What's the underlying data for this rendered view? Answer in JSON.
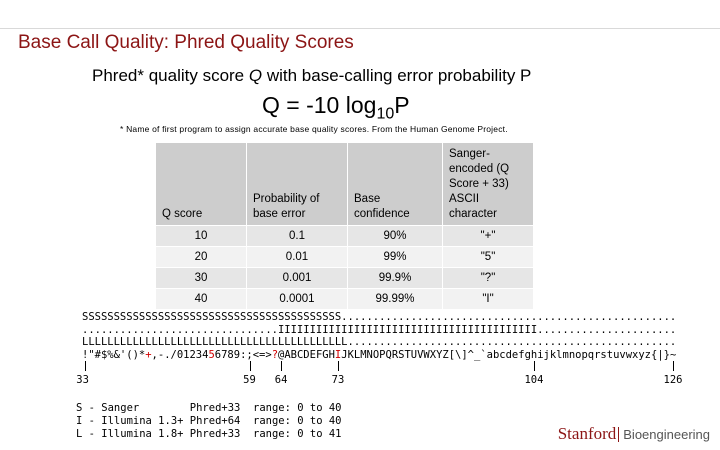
{
  "title": "Base Call Quality: Phred Quality Scores",
  "subtitle": {
    "before": "Phred* quality score ",
    "italic": "Q",
    "after": " with base-calling error probability P"
  },
  "formula": {
    "main": "Q = -10 log",
    "subscript": "10",
    "end": "P"
  },
  "footnote": "* Name of first program to assign accurate base quality scores. From the Human Genome Project.",
  "table": {
    "headers": [
      "Q score",
      "Probability of base error",
      "Base confidence",
      "Sanger-encoded (Q Score + 33) ASCII character"
    ],
    "rows": [
      [
        "10",
        "0.1",
        "90%",
        "\"+\""
      ],
      [
        "20",
        "0.01",
        "99%",
        "\"5\""
      ],
      [
        "30",
        "0.001",
        "99.9%",
        "\"?\""
      ],
      [
        "40",
        "0.0001",
        "99.99%",
        "\"I\""
      ]
    ]
  },
  "encoding": {
    "lines": [
      "SSSSSSSSSSSSSSSSSSSSSSSSSSSSSSSSSSSSSSSSS.....................................................",
      "...............................IIIIIIIIIIIIIIIIIIIIIIIIIIIIIIIIIIIIIIIII......................",
      "LLLLLLLLLLLLLLLLLLLLLLLLLLLLLLLLLLLLLLLLLL...................................................."
    ],
    "ascii": [
      "!\"#$%&'()*",
      "+",
      ",-./01234",
      "5",
      "6789:;<=>",
      "?",
      "@ABCDEFGH",
      "I",
      "JKLMNOPQRSTUVWXYZ[\\]^_`abcdefghijklmnopqrstuvwxyz{|}~"
    ],
    "scale": [
      33,
      59,
      64,
      73,
      104,
      126
    ],
    "legend": [
      "S - Sanger        Phred+33  range: 0 to 40",
      "I - Illumina 1.3+ Phred+64  range: 0 to 40",
      "L - Illumina 1.8+ Phred+33  range: 0 to 41"
    ]
  },
  "footer": {
    "brand": "Stanford",
    "department": "Bioengineering"
  }
}
